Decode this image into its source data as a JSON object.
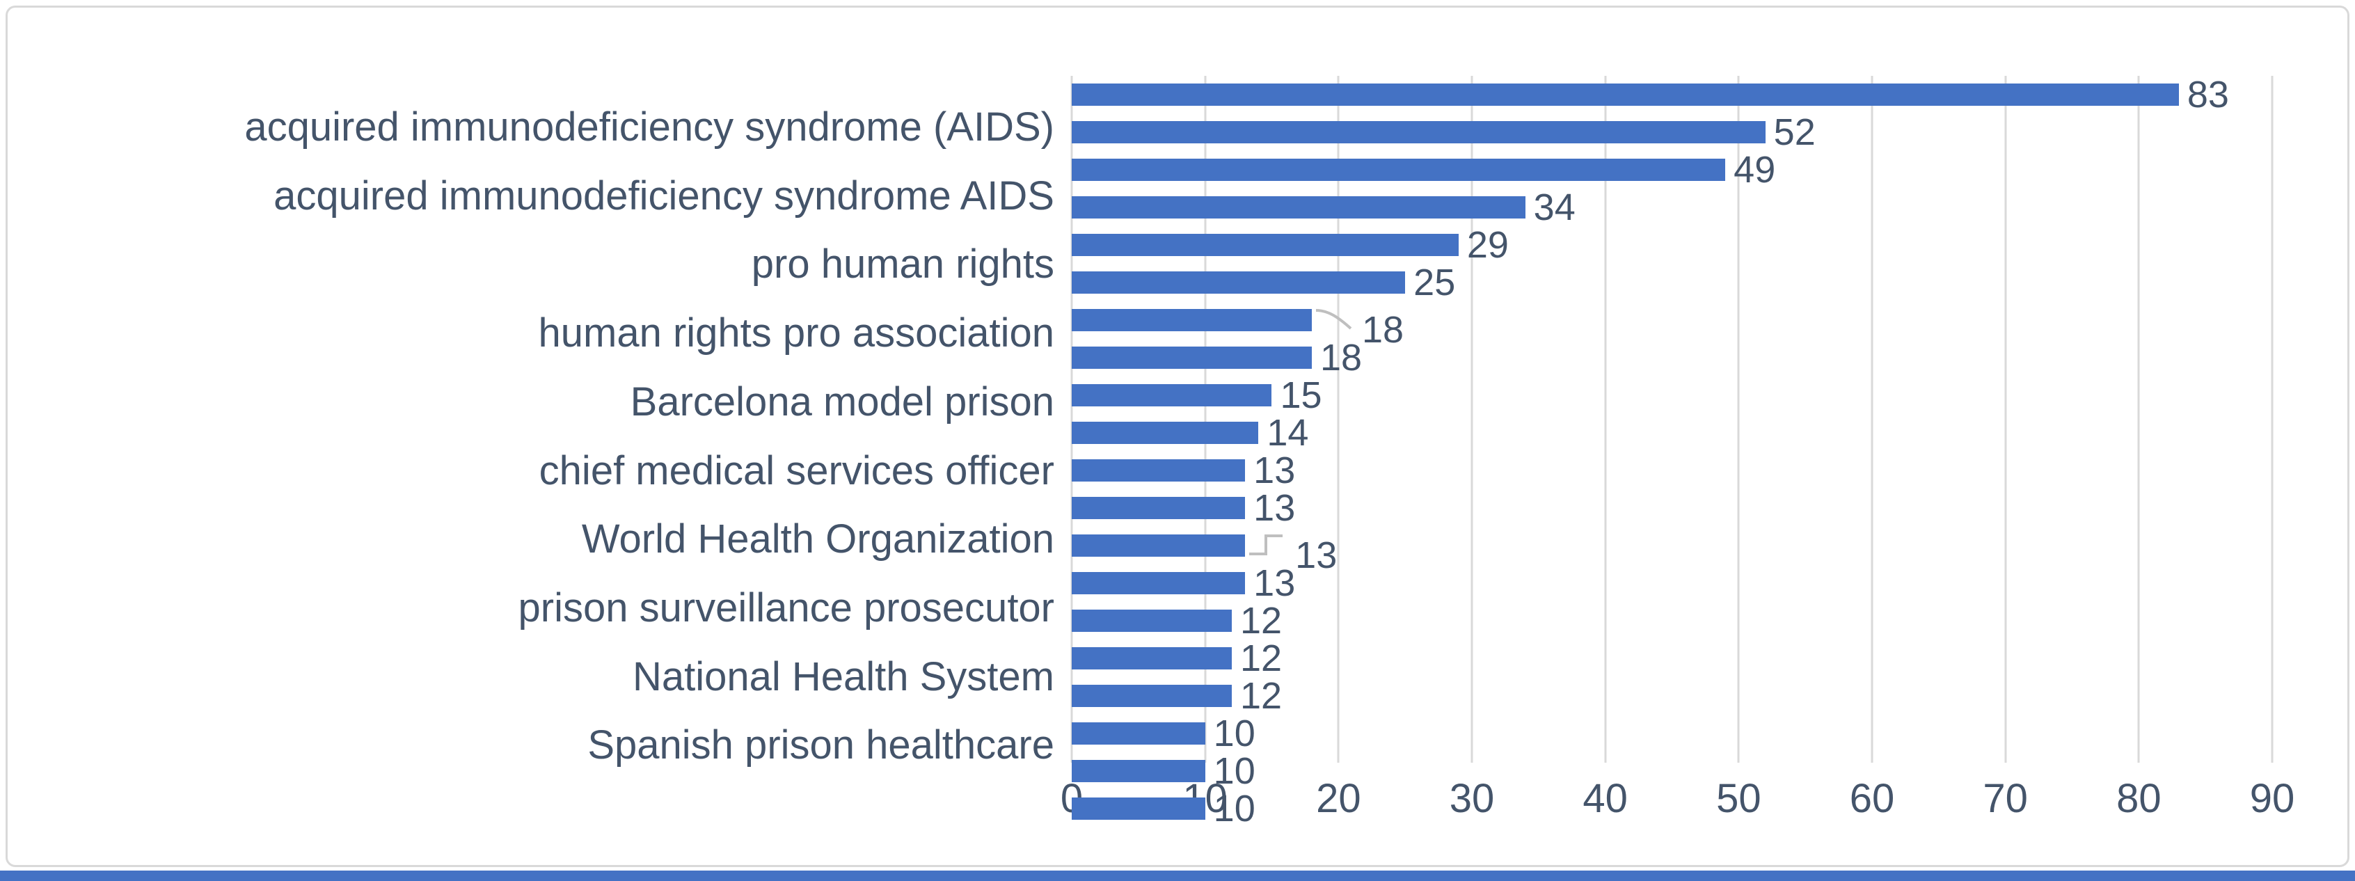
{
  "page": {
    "background_color": "#ffffff",
    "accent_strip_color": "#4472C4"
  },
  "chart_data": {
    "type": "bar",
    "orientation": "horizontal",
    "title": "",
    "xlabel": "",
    "ylabel": "",
    "legend": "none",
    "grid": "vertical",
    "xlim": [
      0,
      90
    ],
    "x_ticks": [
      0,
      10,
      20,
      30,
      40,
      50,
      60,
      70,
      80,
      90
    ],
    "bar_color": "#4472C4",
    "gridline_color": "#D9D9D9",
    "text_color": "#44546A",
    "leader_line_color": "#BFBFBF",
    "value_labels_shown": true,
    "bars": [
      {
        "category": "",
        "value": 83
      },
      {
        "category": "acquired immunodeficiency syndrome (AIDS)",
        "value": 52
      },
      {
        "category": "",
        "value": 49
      },
      {
        "category": "acquired immunodeficiency syndrome AIDS",
        "value": 34
      },
      {
        "category": "",
        "value": 29
      },
      {
        "category": "pro human rights",
        "value": 25
      },
      {
        "category": "",
        "value": 18,
        "label_leader": "curve"
      },
      {
        "category": "human rights pro association",
        "value": 18
      },
      {
        "category": "",
        "value": 15
      },
      {
        "category": "Barcelona model prison",
        "value": 14
      },
      {
        "category": "",
        "value": 13
      },
      {
        "category": "chief medical services officer",
        "value": 13
      },
      {
        "category": "",
        "value": 13,
        "label_leader": "bracket"
      },
      {
        "category": "World Health Organization",
        "value": 13
      },
      {
        "category": "",
        "value": 12
      },
      {
        "category": "prison surveillance prosecutor",
        "value": 12
      },
      {
        "category": "",
        "value": 12
      },
      {
        "category": "National Health System",
        "value": 10
      },
      {
        "category": "",
        "value": 10
      },
      {
        "category": "Spanish prison healthcare",
        "value": 10
      }
    ]
  }
}
